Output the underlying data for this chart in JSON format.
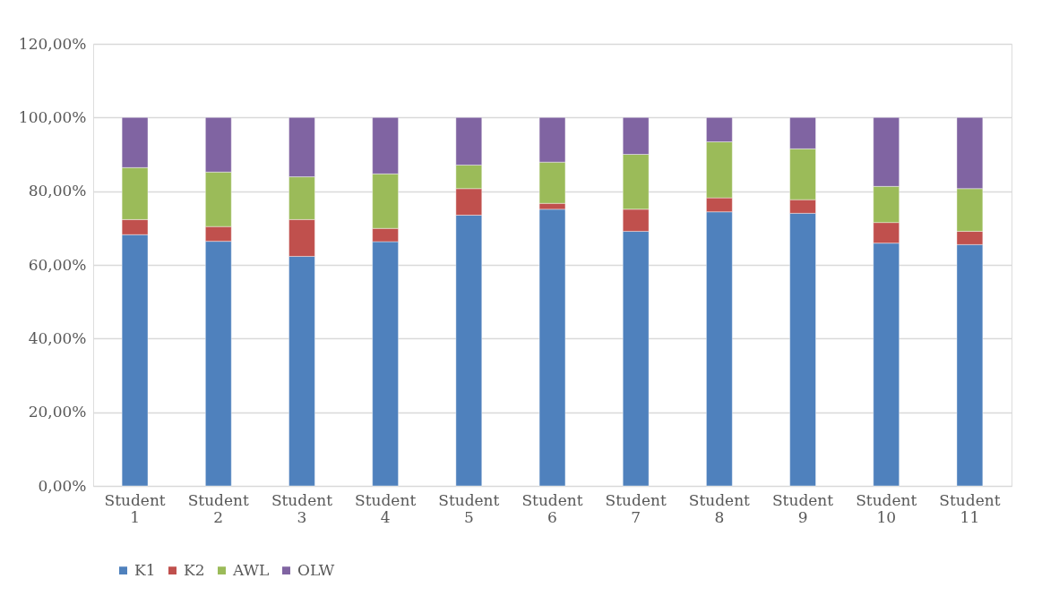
{
  "chart_data": {
    "type": "bar",
    "stacked": true,
    "categories": [
      "Student 1",
      "Student 2",
      "Student 3",
      "Student 4",
      "Student 5",
      "Student 6",
      "Student 7",
      "Student 8",
      "Student 9",
      "Student 10",
      "Student 11"
    ],
    "series": [
      {
        "name": "K1",
        "color": "#4f81bd",
        "values": [
          68.2,
          66.4,
          62.3,
          66.3,
          73.5,
          75.1,
          69.1,
          74.4,
          74.0,
          65.9,
          65.5
        ]
      },
      {
        "name": "K2",
        "color": "#c0504d",
        "values": [
          4.1,
          4.0,
          10.0,
          3.6,
          7.2,
          1.6,
          6.0,
          3.8,
          3.7,
          5.6,
          3.6
        ]
      },
      {
        "name": "AWL",
        "color": "#9bbb59",
        "values": [
          14.1,
          14.8,
          11.6,
          14.8,
          6.4,
          11.2,
          14.9,
          15.2,
          13.8,
          9.8,
          11.6
        ]
      },
      {
        "name": "OLW",
        "color": "#8064a2",
        "values": [
          13.6,
          14.8,
          16.1,
          15.3,
          12.9,
          12.1,
          10.0,
          6.6,
          8.5,
          18.7,
          19.3
        ]
      }
    ],
    "ylim": [
      0,
      120
    ],
    "yticks": [
      {
        "value": 0,
        "label": "0,00%"
      },
      {
        "value": 20,
        "label": "20,00%"
      },
      {
        "value": 40,
        "label": "40,00%"
      },
      {
        "value": 60,
        "label": "60,00%"
      },
      {
        "value": 80,
        "label": "80,00%"
      },
      {
        "value": 100,
        "label": "100,00%"
      },
      {
        "value": 120,
        "label": "120,00%"
      }
    ],
    "grid": "y",
    "legend": "bottom"
  }
}
